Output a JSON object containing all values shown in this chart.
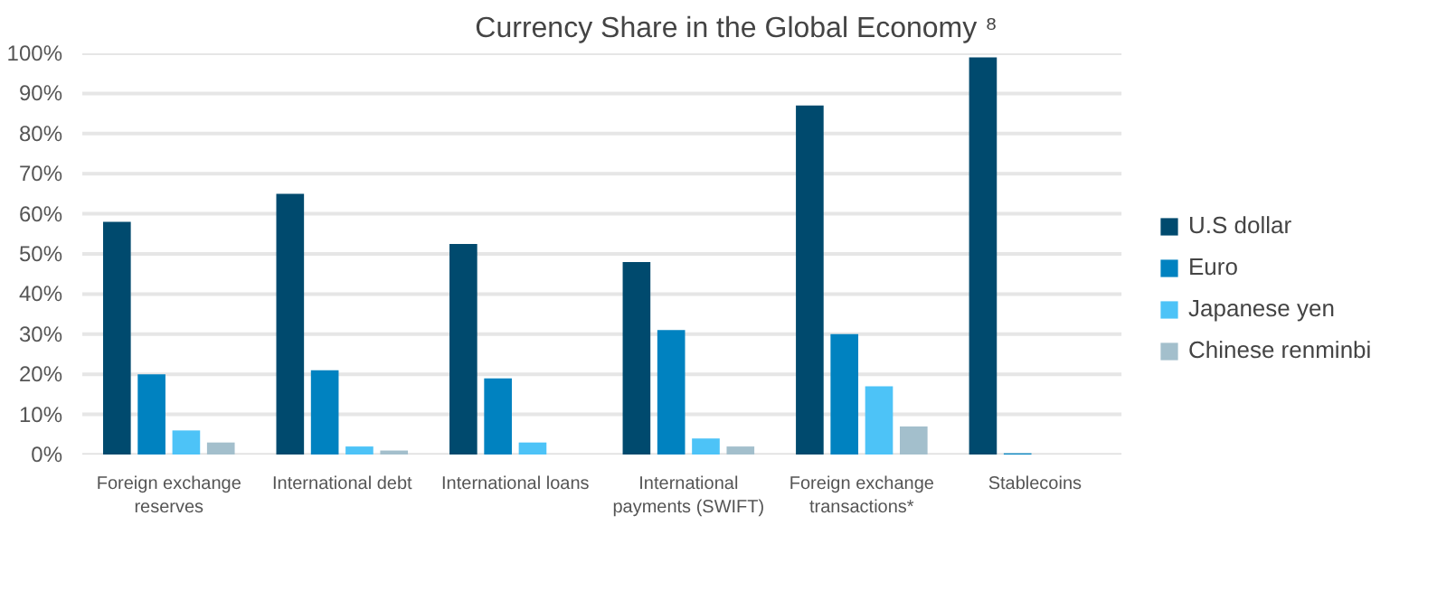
{
  "chart_data": {
    "type": "bar",
    "title": "Currency Share in the Global Economy ⁸",
    "categories": [
      "Foreign exchange\nreserves",
      "International debt",
      "International loans",
      "International\npayments (SWIFT)",
      "Foreign exchange\ntransactions*",
      "Stablecoins"
    ],
    "series": [
      {
        "name": "U.S dollar",
        "color": "#004a6e",
        "values": [
          58,
          65,
          52.5,
          48,
          87,
          99
        ]
      },
      {
        "name": "Euro",
        "color": "#0082c0",
        "values": [
          20,
          21,
          19,
          31,
          30,
          0.3
        ]
      },
      {
        "name": "Japanese yen",
        "color": "#4dc3f7",
        "values": [
          6,
          2,
          3,
          4,
          17,
          null
        ]
      },
      {
        "name": "Chinese renminbi",
        "color": "#a3bfcc",
        "values": [
          3,
          1,
          null,
          2,
          7,
          null
        ]
      }
    ],
    "ylim": [
      0,
      100
    ],
    "yticks": [
      {
        "value": 0,
        "label": "0%"
      },
      {
        "value": 10,
        "label": "10%"
      },
      {
        "value": 20,
        "label": "20%"
      },
      {
        "value": 30,
        "label": "30%"
      },
      {
        "value": 40,
        "label": "40%"
      },
      {
        "value": 50,
        "label": "50%"
      },
      {
        "value": 60,
        "label": "60%"
      },
      {
        "value": 70,
        "label": "70%"
      },
      {
        "value": 80,
        "label": "80%"
      },
      {
        "value": 90,
        "label": "90%"
      },
      {
        "value": 100,
        "label": "100%"
      }
    ],
    "grid": "y",
    "legend": "right"
  }
}
